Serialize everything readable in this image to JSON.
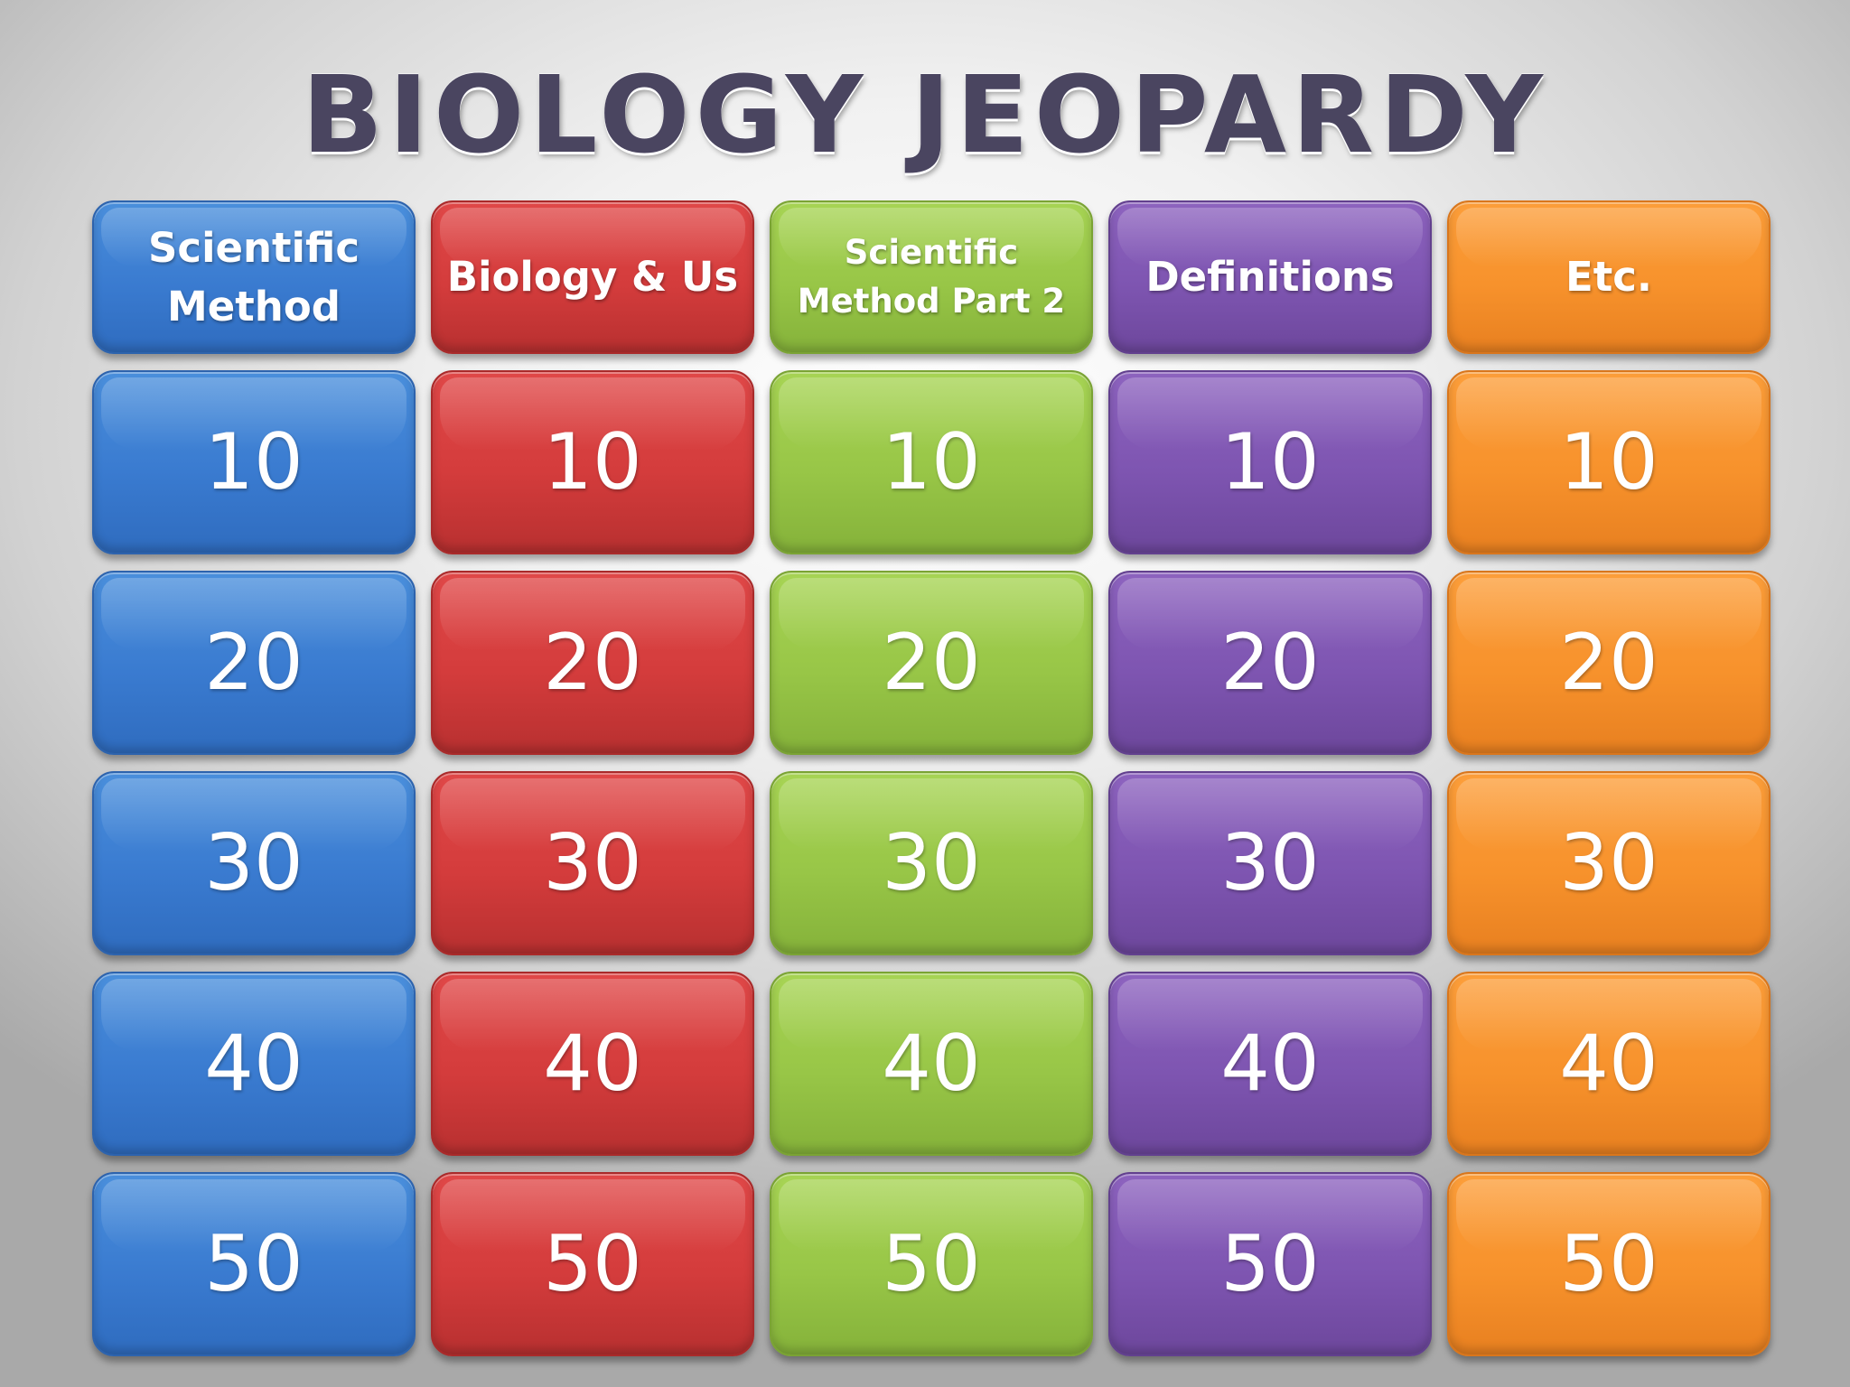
{
  "title": "BIOLOGY JEOPARDY",
  "colors": {
    "blue": "#3a7bd0",
    "red": "#d43c3c",
    "green": "#98c647",
    "purple": "#7e55b1",
    "orange": "#f7922c",
    "title": "#4a4560"
  },
  "categories": [
    {
      "label": "Scientific\nMethod",
      "color": "blue"
    },
    {
      "label": "Biology & Us",
      "color": "red"
    },
    {
      "label": "Scientific\nMethod Part 2",
      "color": "green"
    },
    {
      "label": "Definitions",
      "color": "purple"
    },
    {
      "label": "Etc.",
      "color": "orange"
    }
  ],
  "values": [
    "10",
    "20",
    "30",
    "40",
    "50"
  ]
}
